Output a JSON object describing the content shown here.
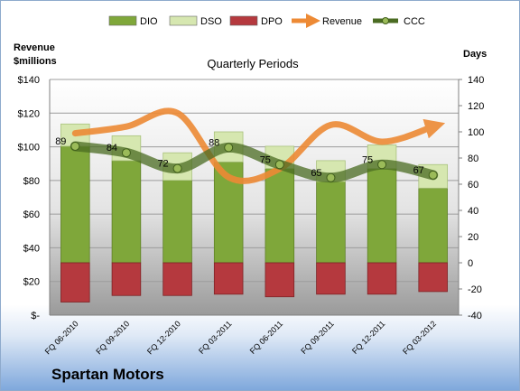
{
  "company": "Spartan Motors",
  "chart_data": {
    "type": "bar",
    "title": "Quarterly Periods",
    "left_axis_label": [
      "Revenue",
      "$millions"
    ],
    "right_axis_label": "Days",
    "categories": [
      "FQ 06-2010",
      "FQ 09-2010",
      "FQ 12-2010",
      "FQ 03-2011",
      "FQ 06-2011",
      "FQ 09-2011",
      "FQ 12-2011",
      "FQ 03-2012"
    ],
    "left_ticks": [
      "$140",
      "$120",
      "$100",
      "$80",
      "$60",
      "$40",
      "$20",
      "$-"
    ],
    "right_ticks": [
      "140",
      "120",
      "100",
      "80",
      "60",
      "40",
      "20",
      "0",
      "-20",
      "-40"
    ],
    "ylim_left": [
      0,
      140
    ],
    "ylim_right": [
      -40,
      140
    ],
    "legend_position": "top",
    "series": [
      {
        "name": "DIO",
        "kind": "stacked-bar-days",
        "color": "#7fa73a",
        "values": [
          89,
          78,
          63,
          77,
          72,
          62,
          72,
          57
        ]
      },
      {
        "name": "DSO",
        "kind": "stacked-bar-days",
        "color": "#d6e7b0",
        "values": [
          17,
          19,
          21,
          23,
          17,
          16,
          18,
          18
        ]
      },
      {
        "name": "DPO",
        "kind": "bar-days-negative",
        "color": "#b5393e",
        "values": [
          -30,
          -25,
          -25,
          -24,
          -26,
          -24,
          -24,
          -22
        ]
      },
      {
        "name": "Revenue",
        "kind": "line-revenue",
        "color": "#ed8a35",
        "values": [
          108,
          112,
          120,
          82,
          87,
          113,
          103,
          112
        ]
      },
      {
        "name": "CCC",
        "kind": "line-days",
        "color": "#4a6b22",
        "values": [
          89,
          84,
          72,
          88,
          75,
          65,
          75,
          67
        ],
        "labels": [
          "89",
          "84",
          "72",
          "88",
          "75",
          "65",
          "75",
          "67"
        ]
      }
    ]
  }
}
